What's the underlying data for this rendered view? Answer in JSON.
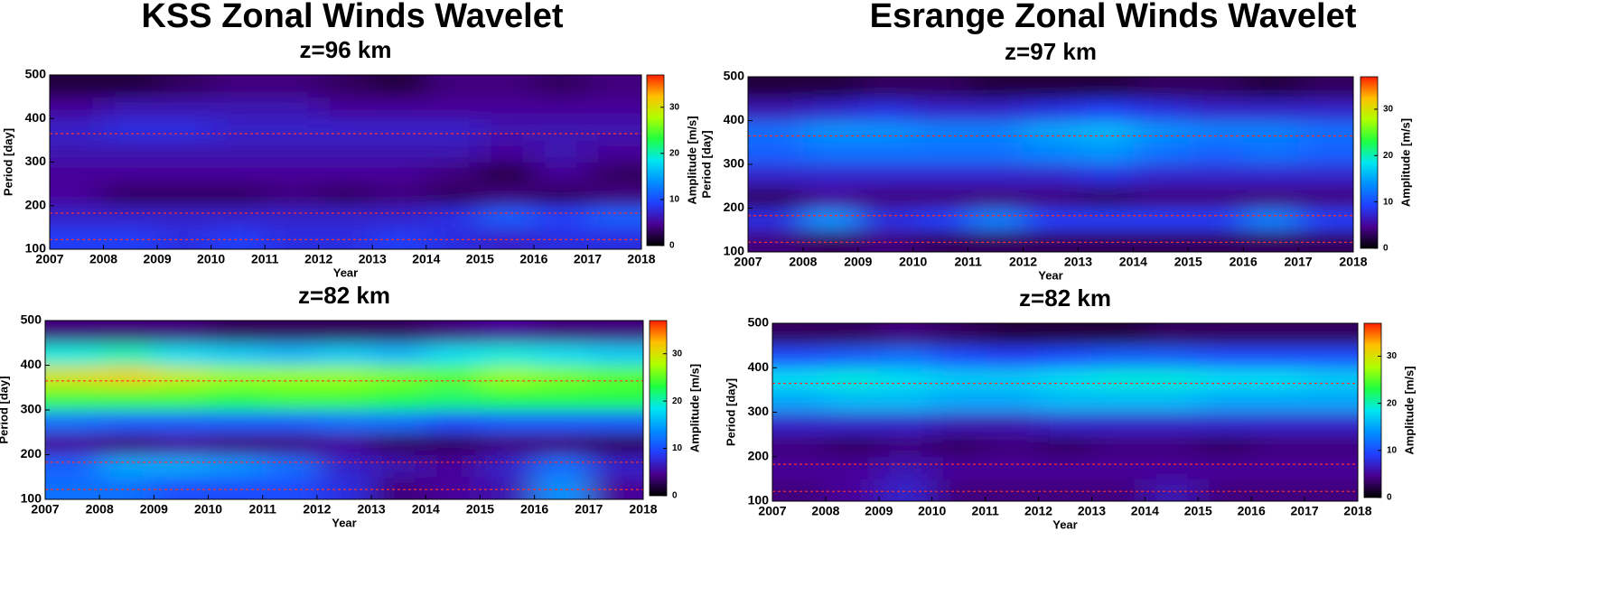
{
  "chart_data": [
    {
      "type": "heatmap",
      "title": "KSS Zonal Winds Wavelet",
      "subtitle": "z=96 km",
      "x_label": "Year",
      "y_label": "Period [day]",
      "colorbar_label": "Amplitude [m/s]",
      "xlim": [
        2007,
        2018
      ],
      "xticks": [
        2007,
        2008,
        2009,
        2010,
        2011,
        2012,
        2013,
        2014,
        2015,
        2016,
        2017,
        2018
      ],
      "ylim": [
        100,
        500
      ],
      "yticks": [
        100,
        200,
        300,
        400,
        500
      ],
      "clim": [
        0,
        37
      ],
      "cticks": [
        0,
        10,
        20,
        30
      ],
      "colormap": [
        "#000000",
        "#4a0090",
        "#2040ff",
        "#0090ff",
        "#00e8f0",
        "#20ff40",
        "#b0ff00",
        "#ffc000",
        "#ff2000"
      ],
      "ref_periods": [
        365,
        183,
        122
      ],
      "ref_color": "#ff3030",
      "x": [
        2007.5,
        2008.5,
        2009.5,
        2010.5,
        2011.5,
        2012.5,
        2013.5,
        2014.5,
        2015.5,
        2016.5,
        2017.5
      ],
      "y": [
        125,
        175,
        225,
        275,
        325,
        375,
        425,
        475
      ],
      "z": [
        [
          9,
          9,
          8,
          9,
          8,
          8,
          9,
          8,
          7,
          8,
          8
        ],
        [
          7,
          7,
          7,
          7,
          7,
          7,
          7,
          8,
          11,
          9,
          11
        ],
        [
          5,
          3,
          3,
          3,
          4,
          3,
          4,
          3,
          4,
          3,
          4
        ],
        [
          5,
          5,
          5,
          5,
          5,
          5,
          5,
          4,
          2,
          5,
          3
        ],
        [
          6,
          6,
          6,
          6,
          6,
          6,
          6,
          6,
          5,
          6,
          5
        ],
        [
          7,
          8,
          8,
          7,
          7,
          7,
          7,
          7,
          6,
          6,
          6
        ],
        [
          5,
          6,
          6,
          6,
          6,
          5,
          5,
          5,
          5,
          5,
          5
        ],
        [
          2,
          2,
          3,
          4,
          4,
          3,
          2,
          4,
          4,
          3,
          4
        ]
      ]
    },
    {
      "type": "heatmap",
      "title": "Esrange Zonal Winds Wavelet",
      "subtitle": "z=97 km",
      "x_label": "Year",
      "y_label": "Period [day]",
      "colorbar_label": "Amplitude [m/s]",
      "xlim": [
        2007,
        2018
      ],
      "xticks": [
        2007,
        2008,
        2009,
        2010,
        2011,
        2012,
        2013,
        2014,
        2015,
        2016,
        2017,
        2018
      ],
      "ylim": [
        100,
        500
      ],
      "yticks": [
        100,
        200,
        300,
        400,
        500
      ],
      "clim": [
        0,
        37
      ],
      "cticks": [
        0,
        10,
        20,
        30
      ],
      "colormap": [
        "#000000",
        "#4a0090",
        "#2040ff",
        "#0090ff",
        "#00e8f0",
        "#20ff40",
        "#b0ff00",
        "#ffc000",
        "#ff2000"
      ],
      "ref_periods": [
        365,
        183,
        122
      ],
      "ref_color": "#ff3030",
      "x": [
        2007.5,
        2008.5,
        2009.5,
        2010.5,
        2011.5,
        2012.5,
        2013.5,
        2014.5,
        2015.5,
        2016.5,
        2017.5
      ],
      "y": [
        125,
        175,
        225,
        275,
        325,
        375,
        425,
        475
      ],
      "z": [
        [
          4,
          3,
          4,
          3,
          3,
          3,
          3,
          3,
          3,
          3,
          3
        ],
        [
          8,
          14,
          8,
          9,
          13,
          9,
          9,
          9,
          9,
          13,
          9
        ],
        [
          3,
          5,
          4,
          4,
          4,
          4,
          3,
          4,
          4,
          4,
          4
        ],
        [
          7,
          7,
          7,
          7,
          7,
          7,
          8,
          7,
          7,
          7,
          7
        ],
        [
          11,
          12,
          12,
          12,
          12,
          13,
          14,
          12,
          11,
          12,
          11
        ],
        [
          12,
          14,
          14,
          13,
          13,
          15,
          16,
          14,
          13,
          13,
          12
        ],
        [
          6,
          7,
          8,
          7,
          7,
          8,
          9,
          8,
          7,
          7,
          7
        ],
        [
          2,
          2,
          3,
          3,
          2,
          2,
          2,
          3,
          3,
          2,
          3
        ]
      ]
    },
    {
      "type": "heatmap",
      "subtitle": "z=82 km",
      "x_label": "Year",
      "y_label": "Period [day]",
      "colorbar_label": "Amplitude [m/s]",
      "xlim": [
        2007,
        2018
      ],
      "xticks": [
        2007,
        2008,
        2009,
        2010,
        2011,
        2012,
        2013,
        2014,
        2015,
        2016,
        2017,
        2018
      ],
      "ylim": [
        100,
        500
      ],
      "yticks": [
        100,
        200,
        300,
        400,
        500
      ],
      "clim": [
        0,
        37
      ],
      "cticks": [
        0,
        10,
        20,
        30
      ],
      "colormap": [
        "#000000",
        "#4a0090",
        "#2040ff",
        "#0090ff",
        "#00e8f0",
        "#20ff40",
        "#b0ff00",
        "#ffc000",
        "#ff2000"
      ],
      "ref_periods": [
        365,
        183,
        122
      ],
      "ref_color": "#ff3030",
      "x": [
        2007.5,
        2008.5,
        2009.5,
        2010.5,
        2011.5,
        2012.5,
        2013.5,
        2014.5,
        2015.5,
        2016.5,
        2017.5
      ],
      "y": [
        125,
        175,
        225,
        275,
        325,
        375,
        425,
        475
      ],
      "z": [
        [
          12,
          12,
          10,
          10,
          10,
          8,
          4,
          5,
          6,
          14,
          5
        ],
        [
          11,
          15,
          15,
          14,
          12,
          7,
          6,
          5,
          7,
          12,
          7
        ],
        [
          5,
          4,
          5,
          4,
          4,
          5,
          3,
          3,
          4,
          4,
          3
        ],
        [
          12,
          11,
          11,
          11,
          11,
          12,
          12,
          10,
          11,
          11,
          11
        ],
        [
          24,
          24,
          24,
          23,
          24,
          24,
          23,
          22,
          23,
          23,
          23
        ],
        [
          30,
          31,
          29,
          27,
          27,
          27,
          26,
          25,
          27,
          26,
          25
        ],
        [
          19,
          20,
          18,
          17,
          16,
          17,
          16,
          18,
          19,
          18,
          17
        ],
        [
          4,
          4,
          4,
          3,
          3,
          3,
          3,
          4,
          5,
          4,
          4
        ]
      ]
    },
    {
      "type": "heatmap",
      "subtitle": "z=82 km",
      "x_label": "Year",
      "y_label": "Period [day]",
      "colorbar_label": "Amplitude [m/s]",
      "xlim": [
        2007,
        2018
      ],
      "xticks": [
        2007,
        2008,
        2009,
        2010,
        2011,
        2012,
        2013,
        2014,
        2015,
        2016,
        2017,
        2018
      ],
      "ylim": [
        100,
        500
      ],
      "yticks": [
        100,
        200,
        300,
        400,
        500
      ],
      "clim": [
        0,
        37
      ],
      "cticks": [
        0,
        10,
        20,
        30
      ],
      "colormap": [
        "#000000",
        "#4a0090",
        "#2040ff",
        "#0090ff",
        "#00e8f0",
        "#20ff40",
        "#b0ff00",
        "#ffc000",
        "#ff2000"
      ],
      "ref_periods": [
        365,
        183,
        122
      ],
      "ref_color": "#ff3030",
      "x": [
        2007.5,
        2008.5,
        2009.5,
        2010.5,
        2011.5,
        2012.5,
        2013.5,
        2014.5,
        2015.5,
        2016.5,
        2017.5
      ],
      "y": [
        125,
        175,
        225,
        275,
        325,
        375,
        425,
        475
      ],
      "z": [
        [
          4,
          5,
          7,
          4,
          4,
          4,
          4,
          6,
          4,
          4,
          4
        ],
        [
          5,
          5,
          6,
          5,
          5,
          5,
          5,
          5,
          5,
          5,
          5
        ],
        [
          4,
          3,
          4,
          3,
          4,
          3,
          4,
          4,
          3,
          4,
          4
        ],
        [
          7,
          7,
          7,
          6,
          6,
          7,
          7,
          7,
          7,
          7,
          7
        ],
        [
          15,
          16,
          16,
          15,
          15,
          16,
          16,
          16,
          15,
          15,
          15
        ],
        [
          18,
          19,
          18,
          17,
          17,
          18,
          19,
          19,
          18,
          18,
          17
        ],
        [
          10,
          11,
          12,
          10,
          9,
          10,
          11,
          11,
          10,
          10,
          10
        ],
        [
          3,
          3,
          4,
          3,
          2,
          2,
          2,
          3,
          3,
          3,
          3
        ]
      ]
    }
  ]
}
